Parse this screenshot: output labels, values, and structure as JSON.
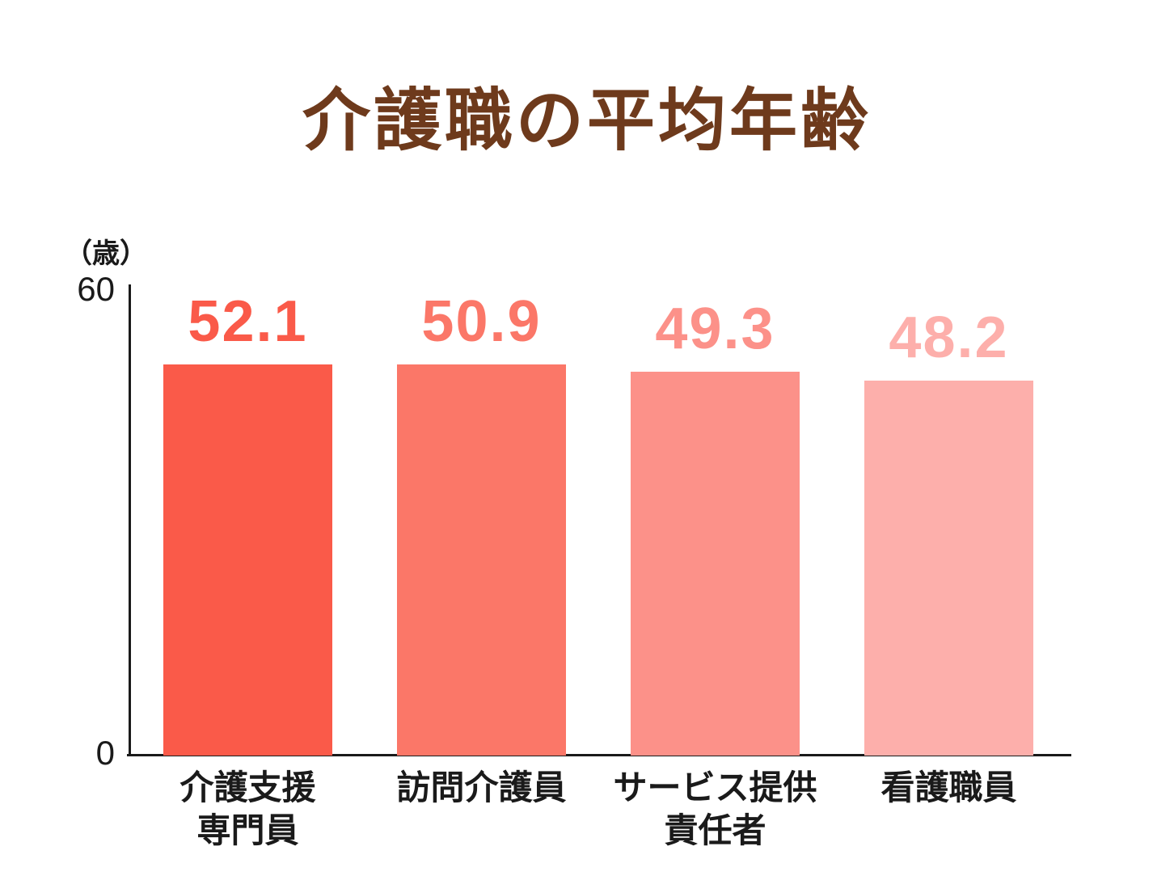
{
  "chart_data": {
    "type": "bar",
    "title": "介護職の平均年齢",
    "y_unit": "（歳）",
    "ylim": [
      0,
      60
    ],
    "y_max_label": "60",
    "y_min_label": "0",
    "categories": [
      [
        "介護支援",
        "専門員"
      ],
      [
        "訪問介護員"
      ],
      [
        "サービス提供",
        "責任者"
      ],
      [
        "看護職員"
      ]
    ],
    "values": [
      52.1,
      50.9,
      49.3,
      48.2
    ],
    "value_labels": [
      "52.1",
      "50.9",
      "49.3",
      "48.2"
    ],
    "bar_colors": [
      "#fa5a49",
      "#fb7768",
      "#fc9189",
      "#fdafab"
    ],
    "colors": {
      "title": "#6e3a1c",
      "axis": "#1a1a1a",
      "category_label": "#1a1a1a",
      "background": "#ffffff"
    },
    "grid": false,
    "legend": false
  }
}
